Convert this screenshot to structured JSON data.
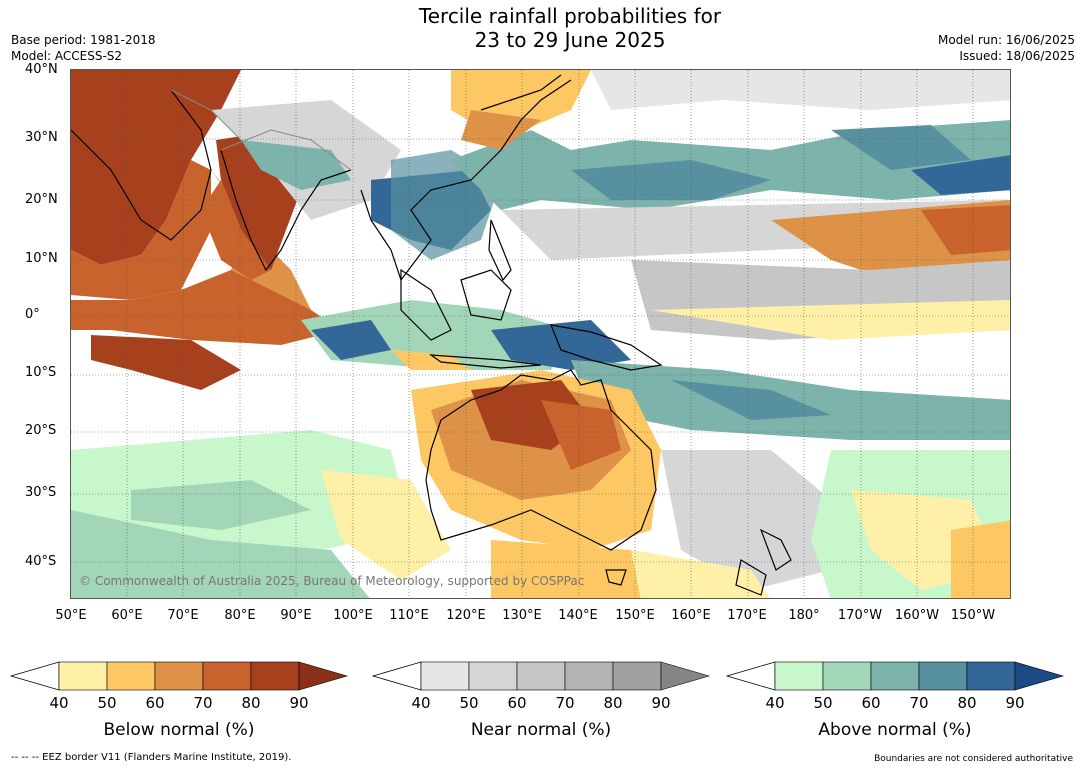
{
  "title_line1": "Tercile rainfall probabilities for",
  "title_line2": "23 to 29 June 2025",
  "base_period": "Base period: 1981-2018",
  "model": "Model: ACCESS-S2",
  "model_run": "Model run: 16/06/2025",
  "issued": "Issued: 18/06/2025",
  "lat_labels": [
    "40°N",
    "30°N",
    "20°N",
    "10°N",
    "0°",
    "10°S",
    "20°S",
    "30°S",
    "40°S"
  ],
  "lon_labels": [
    "50°E",
    "60°E",
    "70°E",
    "80°E",
    "90°E",
    "100°E",
    "110°E",
    "120°E",
    "130°E",
    "140°E",
    "150°E",
    "160°E",
    "170°E",
    "180°",
    "170°W",
    "160°W",
    "150°W"
  ],
  "copyright": "© Commonwealth of Australia 2025, Bureau of Meteorology, supported by COSPPac",
  "colorbars": [
    {
      "label": "Below normal (%)",
      "ticks": [
        "40",
        "50",
        "60",
        "70",
        "80",
        "90"
      ],
      "colors": [
        "#fff0a8",
        "#fdc763",
        "#de9248",
        "#c8632e",
        "#a7411d",
        "#8b2f18"
      ]
    },
    {
      "label": "Near normal (%)",
      "ticks": [
        "40",
        "50",
        "60",
        "70",
        "80",
        "90"
      ],
      "colors": [
        "#e6e6e6",
        "#d6d6d6",
        "#c6c6c6",
        "#b3b3b3",
        "#a0a0a0",
        "#858585"
      ]
    },
    {
      "label": "Above normal (%)",
      "ticks": [
        "40",
        "50",
        "60",
        "70",
        "80",
        "90"
      ],
      "colors": [
        "#c9f7cc",
        "#a3d6b8",
        "#7cb3ab",
        "#5791a0",
        "#336797",
        "#1b4a87"
      ]
    }
  ],
  "footer_left": "--  --  -- EEZ border V11 (Flanders Marine Institute, 2019).",
  "footer_right": "Boundaries are not considered authoritative"
}
